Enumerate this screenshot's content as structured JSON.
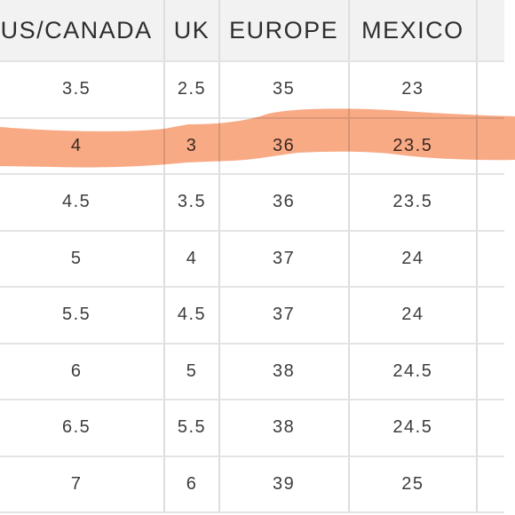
{
  "table": {
    "headers": [
      "US/CANADA",
      "UK",
      "EUROPE",
      "MEXICO"
    ],
    "rows": [
      [
        "3.5",
        "2.5",
        "35",
        "23"
      ],
      [
        "4",
        "3",
        "36",
        "23.5"
      ],
      [
        "4.5",
        "3.5",
        "36",
        "23.5"
      ],
      [
        "5",
        "4",
        "37",
        "24"
      ],
      [
        "5.5",
        "4.5",
        "37",
        "24"
      ],
      [
        "6",
        "5",
        "38",
        "24.5"
      ],
      [
        "6.5",
        "5.5",
        "38",
        "24.5"
      ],
      [
        "7",
        "6",
        "39",
        "25"
      ]
    ],
    "highlighted_row_index": 1
  },
  "colors": {
    "header_background": "#f2f2f2",
    "grid_lines": "#dedede",
    "text": "#3c3c3c",
    "highlight": "#f7a178"
  }
}
